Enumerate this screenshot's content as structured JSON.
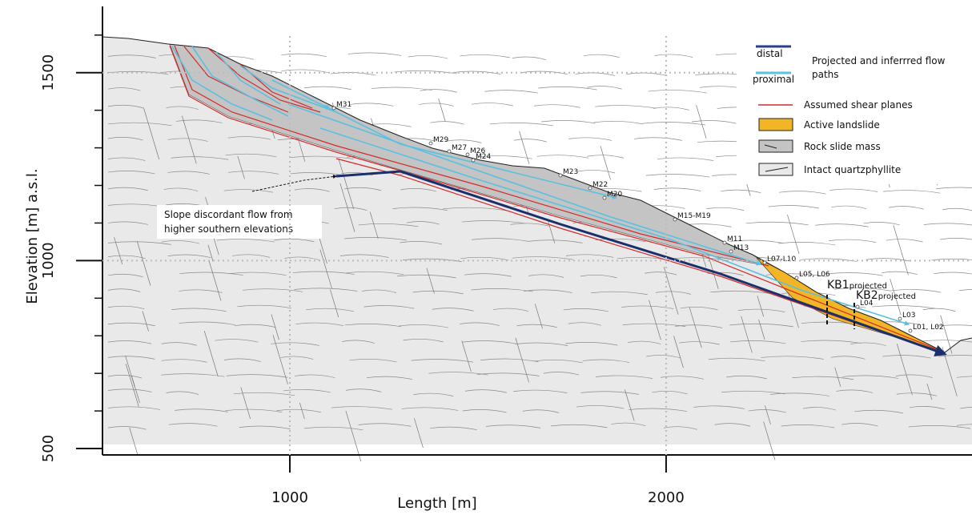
{
  "axes": {
    "xlabel": "Length [m]",
    "ylabel": "Elevation [m] a.s.l.",
    "xlim": [
      502,
      2813
    ],
    "ylim": [
      483,
      1672
    ],
    "xticks": [
      1000,
      2000
    ],
    "yticks": [
      500,
      1000,
      1500
    ]
  },
  "legend": {
    "distal": "distal",
    "proximal": "proximal",
    "flow_title": [
      "Projected and inferrred flow",
      "paths"
    ],
    "items": [
      "Assumed shear planes",
      "Active landslide",
      "Rock slide mass",
      "Intact quartzphyllite"
    ]
  },
  "annotation": [
    "Slope discordant flow from",
    "higher southern elevations"
  ],
  "points": [
    "M31",
    "M29",
    "M27",
    "M26",
    "M24",
    "M23",
    "M22",
    "M20",
    "M15-M19",
    "M11",
    "M13",
    "L07-L10",
    "L05, L06",
    "L04",
    "L03",
    "L01, L02"
  ],
  "boreholes": [
    {
      "name": "KB1",
      "note": "projected"
    },
    {
      "name": "KB2",
      "note": "projected"
    }
  ]
}
